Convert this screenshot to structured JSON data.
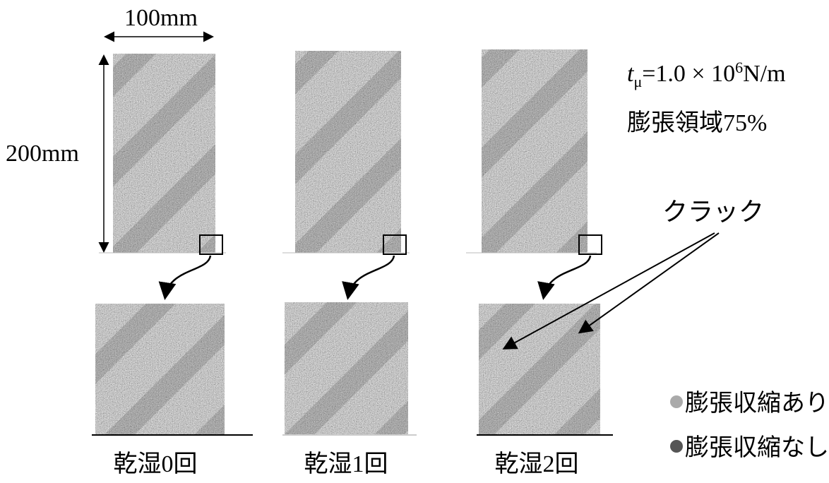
{
  "dimensions": {
    "width": "100mm",
    "height": "200mm"
  },
  "parameters": {
    "thickness": {
      "symbol": "t",
      "subscript": "μ",
      "value": "=1.0 × 10",
      "exponent": "6",
      "unit": "N/m"
    },
    "expansion_region": "膨張領域75%"
  },
  "annotation": "クラック",
  "panels": [
    {
      "label": "乾湿0回"
    },
    {
      "label": "乾湿1回"
    },
    {
      "label": "乾湿2回"
    }
  ],
  "legend": [
    {
      "label": "膨張収縮あり"
    },
    {
      "label": "膨張収縮なし"
    }
  ]
}
